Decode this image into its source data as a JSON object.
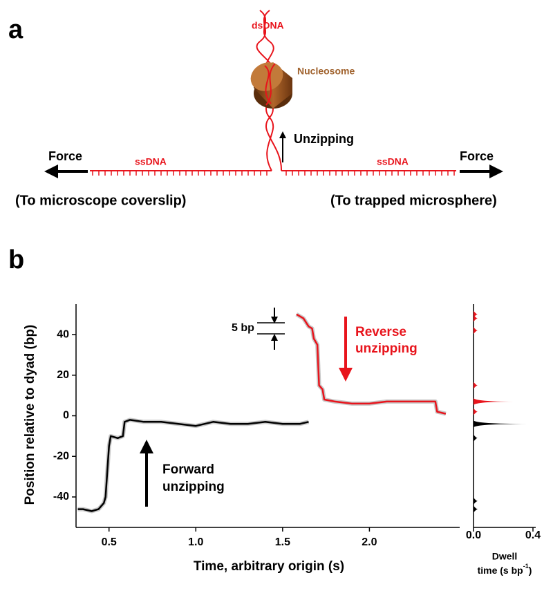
{
  "diagram": {
    "panel_label": "a",
    "dsdna": "dsDNA",
    "nucleosome": "Nucleosome",
    "unzipping": "Unzipping",
    "force_left": "Force",
    "force_right": "Force",
    "ssdna_left": "ssDNA",
    "ssdna_right": "ssDNA",
    "left_caption": "(To microscope coverslip)",
    "right_caption": "(To trapped microsphere)"
  },
  "chart_data": {
    "type": "line",
    "panel_label": "b",
    "xlabel": "Time, arbitrary origin (s)",
    "ylabel": "Position relative to dyad (bp)",
    "xlim": [
      0.31,
      2.52
    ],
    "xticks": [
      0.5,
      {
        "value": 1,
        "label": "1.0"
      },
      1.5,
      {
        "value": 2,
        "label": "2.0"
      }
    ],
    "ylim": [
      -55,
      55
    ],
    "yticks": [
      -40,
      -20,
      0,
      20,
      40
    ],
    "series": [
      {
        "color": "#000000",
        "x": [
          0.32,
          0.35,
          0.4,
          0.44,
          0.47,
          0.48,
          0.5,
          0.51,
          0.55,
          0.58,
          0.59,
          0.62,
          0.7,
          0.8,
          0.9,
          1.0,
          1.1,
          1.2,
          1.3,
          1.4,
          1.5,
          1.6,
          1.65
        ],
        "values": [
          -46,
          -46,
          -47,
          -46,
          -43,
          -40,
          -15,
          -10,
          -11,
          -10,
          -3,
          -2,
          -3,
          -3,
          -4,
          -5,
          -3,
          -4,
          -4,
          -3,
          -4,
          -4,
          -3
        ]
      },
      {
        "color": "#e8141c",
        "x": [
          1.58,
          1.62,
          1.65,
          1.67,
          1.68,
          1.7,
          1.71,
          1.73,
          1.74,
          1.8,
          1.9,
          2.0,
          2.1,
          2.2,
          2.3,
          2.38,
          2.39,
          2.44
        ],
        "values": [
          50,
          48,
          44,
          43,
          38,
          35,
          15,
          13,
          8,
          7,
          6,
          6,
          7,
          7,
          7,
          7,
          2,
          1
        ]
      }
    ],
    "annotations": {
      "scale_bar": "5 bp",
      "reverse": [
        "Reverse",
        "unzipping"
      ],
      "forward": [
        "Forward",
        "unzipping"
      ]
    },
    "dwell": {
      "xlim": [
        0,
        0.4
      ],
      "xticks": [
        {
          "value": 0,
          "label": "0.0"
        },
        0.4
      ],
      "label": [
        "Dwell",
        "time (s bp",
        "-1",
        ")"
      ],
      "series": [
        {
          "color": "#e8141c",
          "y": [
            50,
            48,
            42,
            15,
            7,
            2
          ],
          "values": [
            0.01,
            0.01,
            0.01,
            0.01,
            0.27,
            0.01
          ]
        },
        {
          "color": "#000000",
          "y": [
            -4,
            -11,
            -42,
            -46
          ],
          "values": [
            0.38,
            0.02,
            0.02,
            0.03
          ]
        }
      ]
    }
  }
}
